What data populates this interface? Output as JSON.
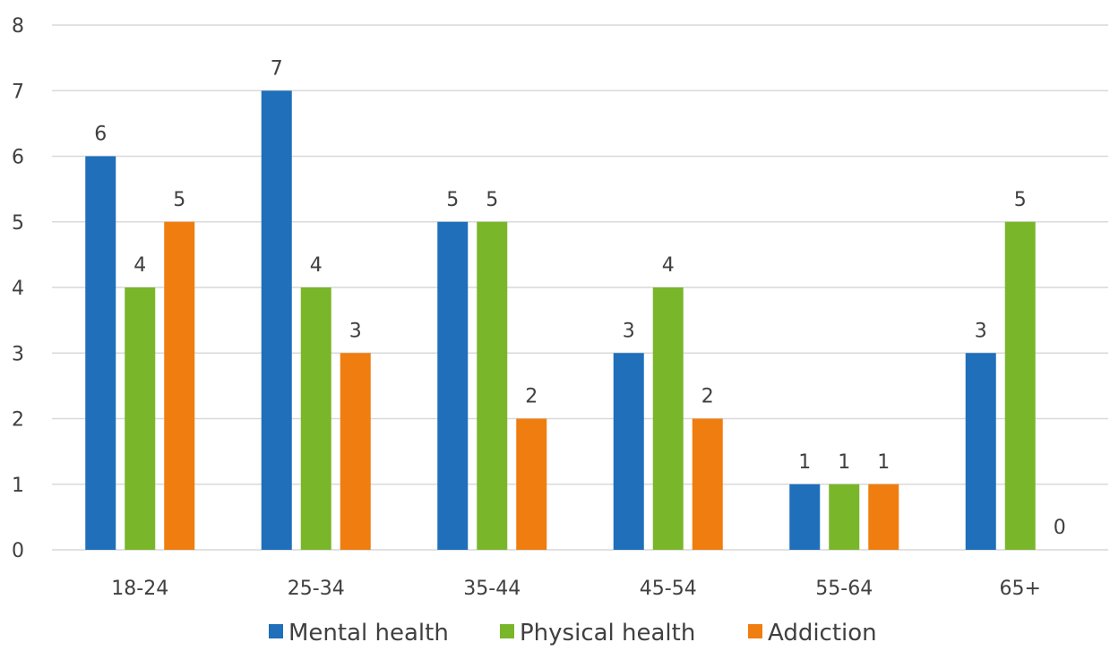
{
  "chart_data": {
    "type": "bar",
    "title": "",
    "xlabel": "",
    "ylabel": "",
    "categories": [
      "18-24",
      "25-34",
      "35-44",
      "45-54",
      "55-64",
      "65+"
    ],
    "series": [
      {
        "name": "Mental health",
        "color": "#1f6fba",
        "values": [
          6,
          7,
          5,
          3,
          1,
          3
        ]
      },
      {
        "name": "Physical health",
        "color": "#7ab62a",
        "values": [
          4,
          4,
          5,
          4,
          1,
          5
        ]
      },
      {
        "name": "Addiction",
        "color": "#f07d0f",
        "values": [
          5,
          3,
          2,
          2,
          1,
          0
        ]
      }
    ],
    "ylim": [
      0,
      8
    ],
    "yticks": [
      0,
      1,
      2,
      3,
      4,
      5,
      6,
      7,
      8
    ],
    "grid": true,
    "legend_position": "bottom",
    "data_labels": true
  }
}
